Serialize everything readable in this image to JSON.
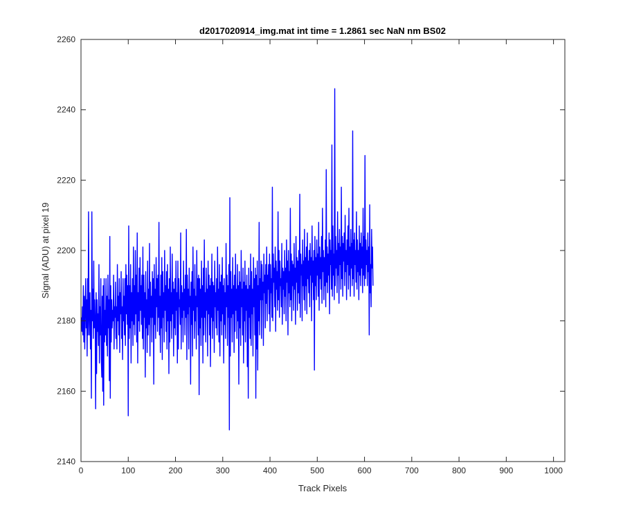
{
  "chart_data": {
    "type": "line",
    "title": "d2017020914_img.mat int time = 1.2861 sec  NaN nm BS02",
    "xlabel": "Track Pixels",
    "ylabel": "Signal (ADU) at pixel 19",
    "xlim": [
      0,
      1024
    ],
    "ylim": [
      2140,
      2260
    ],
    "xticks": [
      0,
      100,
      200,
      300,
      400,
      500,
      600,
      700,
      800,
      900,
      1000
    ],
    "yticks": [
      2140,
      2160,
      2180,
      2200,
      2220,
      2240,
      2260
    ],
    "grid": false,
    "line_color": "#0000ff",
    "series": [
      {
        "x_start": 1,
        "x_step": 1,
        "values": [
          2181,
          2177,
          2184,
          2176,
          2190,
          2174,
          2187,
          2172,
          2184,
          2192,
          2178,
          2186,
          2170,
          2192,
          2176,
          2211,
          2181,
          2176,
          2188,
          2172,
          2183,
          2158,
          2211,
          2180,
          2189,
          2175,
          2197,
          2178,
          2186,
          2180,
          2155,
          2188,
          2165,
          2186,
          2177,
          2182,
          2173,
          2196,
          2168,
          2184,
          2176,
          2192,
          2169,
          2164,
          2187,
          2160,
          2190,
          2156,
          2192,
          2174,
          2183,
          2176,
          2192,
          2173,
          2187,
          2170,
          2193,
          2178,
          2186,
          2163,
          2204,
          2158,
          2190,
          2174,
          2186,
          2178,
          2183,
          2180,
          2193,
          2172,
          2184,
          2181,
          2191,
          2175,
          2184,
          2172,
          2196,
          2180,
          2187,
          2176,
          2192,
          2171,
          2188,
          2182,
          2194,
          2175,
          2184,
          2169,
          2192,
          2180,
          2187,
          2176,
          2192,
          2173,
          2196,
          2182,
          2193,
          2179,
          2190,
          2153,
          2207,
          2175,
          2190,
          2178,
          2196,
          2168,
          2188,
          2180,
          2192,
          2173,
          2201,
          2179,
          2190,
          2176,
          2200,
          2182,
          2193,
          2174,
          2205,
          2168,
          2188,
          2180,
          2195,
          2177,
          2198,
          2183,
          2190,
          2179,
          2193,
          2175,
          2201,
          2172,
          2193,
          2181,
          2188,
          2164,
          2194,
          2178,
          2186,
          2171,
          2197,
          2176,
          2189,
          2179,
          2202,
          2170,
          2191,
          2181,
          2187,
          2174,
          2194,
          2181,
          2192,
          2162,
          2196,
          2179,
          2189,
          2175,
          2198,
          2184,
          2192,
          2177,
          2193,
          2181,
          2208,
          2176,
          2187,
          2171,
          2193,
          2178,
          2198,
          2169,
          2194,
          2181,
          2188,
          2174,
          2200,
          2183,
          2190,
          2177,
          2194,
          2172,
          2196,
          2180,
          2189,
          2165,
          2192,
          2174,
          2201,
          2180,
          2188,
          2175,
          2199,
          2182,
          2191,
          2170,
          2189,
          2178,
          2192,
          2176,
          2197,
          2183,
          2188,
          2168,
          2197,
          2172,
          2192,
          2184,
          2186,
          2179,
          2205,
          2172,
          2190,
          2181,
          2188,
          2174,
          2197,
          2183,
          2189,
          2176,
          2193,
          2181,
          2206,
          2169,
          2193,
          2182,
          2189,
          2172,
          2195,
          2184,
          2187,
          2162,
          2191,
          2179,
          2194,
          2170,
          2201,
          2183,
          2189,
          2175,
          2196,
          2180,
          2187,
          2172,
          2200,
          2184,
          2192,
          2176,
          2193,
          2159,
          2192,
          2178,
          2189,
          2173,
          2197,
          2181,
          2190,
          2168,
          2195,
          2176,
          2203,
          2181,
          2188,
          2174,
          2195,
          2183,
          2189,
          2170,
          2197,
          2182,
          2193,
          2176,
          2190,
          2167,
          2192,
          2181,
          2199,
          2175,
          2191,
          2180,
          2190,
          2171,
          2197,
          2184,
          2188,
          2178,
          2192,
          2176,
          2201,
          2183,
          2189,
          2174,
          2196,
          2170,
          2191,
          2180,
          2193,
          2176,
          2198,
          2182,
          2190,
          2168,
          2192,
          2179,
          2188,
          2175,
          2202,
          2184,
          2193,
          2173,
          2190,
          2181,
          2196,
          2149,
          2215,
          2170,
          2194,
          2181,
          2189,
          2174,
          2198,
          2182,
          2190,
          2171,
          2193,
          2177,
          2199,
          2183,
          2189,
          2175,
          2196,
          2180,
          2190,
          2162,
          2194,
          2178,
          2191,
          2173,
          2200,
          2184,
          2189,
          2176,
          2195,
          2168,
          2191,
          2180,
          2197,
          2174,
          2190,
          2183,
          2193,
          2167,
          2189,
          2158,
          2195,
          2181,
          2190,
          2175,
          2199,
          2173,
          2194,
          2182,
          2189,
          2170,
          2198,
          2184,
          2192,
          2176,
          2195,
          2158,
          2193,
          2172,
          2197,
          2166,
          2190,
          2180,
          2208,
          2176,
          2192,
          2186,
          2197,
          2175,
          2196,
          2186,
          2191,
          2173,
          2199,
          2188,
          2193,
          2178,
          2196,
          2185,
          2201,
          2180,
          2193,
          2189,
          2196,
          2182,
          2199,
          2177,
          2196,
          2188,
          2192,
          2181,
          2218,
          2180,
          2199,
          2191,
          2195,
          2184,
          2201,
          2177,
          2197,
          2189,
          2194,
          2183,
          2211,
          2186,
          2200,
          2181,
          2197,
          2190,
          2192,
          2184,
          2202,
          2179,
          2195,
          2189,
          2194,
          2182,
          2200,
          2187,
          2195,
          2180,
          2203,
          2191,
          2197,
          2176,
          2200,
          2188,
          2194,
          2184,
          2212,
          2186,
          2199,
          2180,
          2197,
          2190,
          2196,
          2183,
          2202,
          2189,
          2195,
          2179,
          2204,
          2191,
          2198,
          2183,
          2197,
          2188,
          2200,
          2185,
          2216,
          2181,
          2199,
          2193,
          2196,
          2180,
          2203,
          2190,
          2197,
          2186,
          2206,
          2183,
          2198,
          2190,
          2201,
          2182,
          2205,
          2192,
          2197,
          2188,
          2200,
          2184,
          2202,
          2193,
          2198,
          2180,
          2207,
          2191,
          2197,
          2186,
          2200,
          2166,
          2204,
          2190,
          2198,
          2186,
          2203,
          2193,
          2199,
          2187,
          2208,
          2183,
          2201,
          2192,
          2198,
          2189,
          2204,
          2185,
          2212,
          2194,
          2200,
          2186,
          2198,
          2190,
          2203,
          2184,
          2223,
          2191,
          2201,
          2188,
          2199,
          2193,
          2205,
          2182,
          2203,
          2196,
          2200,
          2189,
          2230,
          2187,
          2207,
          2193,
          2199,
          2186,
          2246,
          2190,
          2204,
          2195,
          2200,
          2188,
          2211,
          2193,
          2202,
          2185,
          2206,
          2196,
          2201,
          2189,
          2218,
          2192,
          2204,
          2187,
          2202,
          2197,
          2205,
          2190,
          2210,
          2194,
          2200,
          2186,
          2203,
          2196,
          2207,
          2189,
          2212,
          2193,
          2201,
          2187,
          2206,
          2195,
          2202,
          2190,
          2234,
          2192,
          2203,
          2187,
          2205,
          2196,
          2200,
          2191,
          2211,
          2189,
          2203,
          2194,
          2200,
          2186,
          2207,
          2193,
          2202,
          2190,
          2205,
          2195,
          2201,
          2188,
          2212,
          2193,
          2204,
          2190,
          2227,
          2192,
          2203,
          2196,
          2200,
          2190,
          2205,
          2194,
          2201,
          2176,
          2213,
          2188,
          2196,
          2184,
          2206,
          2195,
          2201,
          2190
        ]
      }
    ]
  }
}
